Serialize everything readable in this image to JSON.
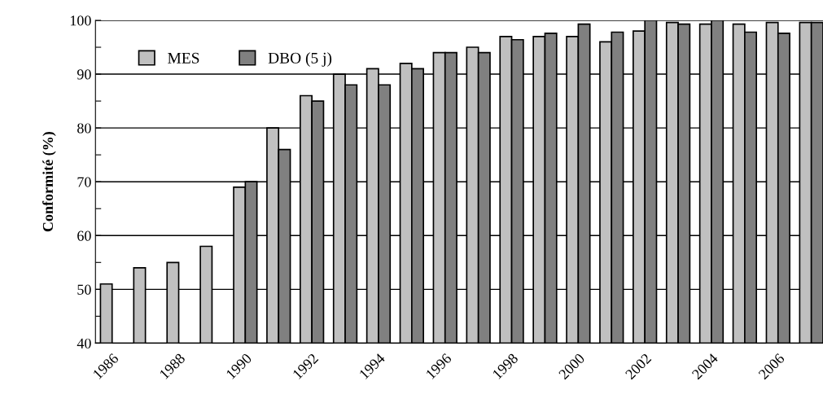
{
  "chart_data": {
    "type": "bar",
    "ylabel": "Conformité (%)",
    "categories": [
      "1986",
      null,
      "1988",
      null,
      "1990",
      null,
      "1992",
      null,
      "1994",
      null,
      "1996",
      null,
      "1998",
      null,
      "2000",
      null,
      "2002",
      null,
      "2004",
      null,
      "2006",
      null
    ],
    "series": [
      {
        "name": "MES",
        "color": "#c0c0c0",
        "values": [
          51,
          54,
          55,
          58,
          69,
          80,
          86,
          90,
          91,
          92,
          94,
          95,
          97,
          97,
          97,
          96,
          98,
          99.6,
          99.3,
          99.3,
          99.6,
          99.6
        ]
      },
      {
        "name": "DBO (5 j)",
        "color": "#808080",
        "values": [
          null,
          null,
          null,
          null,
          70,
          76,
          85,
          88,
          88,
          91,
          94,
          94,
          96.4,
          97.6,
          99.3,
          97.8,
          100,
          99.3,
          100,
          97.8,
          97.6,
          99.6
        ]
      }
    ],
    "ylim": [
      40,
      100
    ],
    "yticks": [
      40,
      {
        "value": 45,
        "label": null
      },
      50,
      {
        "value": 55,
        "label": null
      },
      60,
      {
        "value": 65,
        "label": null
      },
      70,
      {
        "value": 75,
        "label": null
      },
      80,
      {
        "value": 85,
        "label": null
      },
      90,
      {
        "value": 95,
        "label": null
      },
      100
    ],
    "grid": "y",
    "legend": "top left"
  }
}
